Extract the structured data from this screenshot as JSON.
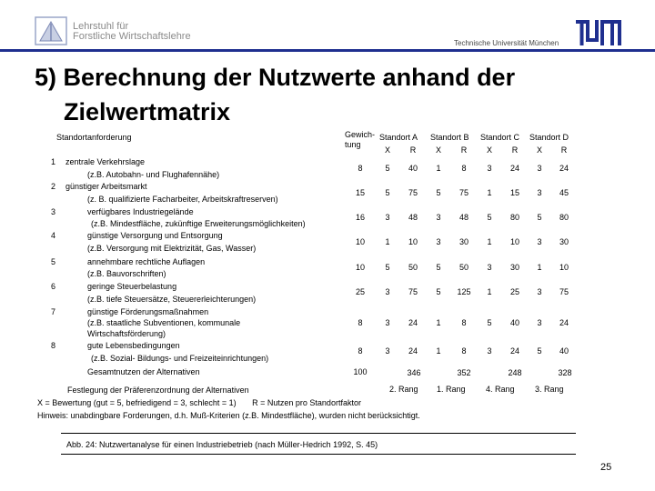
{
  "header": {
    "chair_line1": "Lehrstuhl für",
    "chair_line2": "Forstliche Wirtschaftslehre",
    "university": "Technische Universität München",
    "tum_logo": "TUM"
  },
  "title_line1": "5) Berechnung der Nutzwerte anhand der",
  "title_line2": "Zielwertmatrix",
  "table": {
    "col_criteria": "Standortanforderung",
    "col_weight_1": "Gewich-",
    "col_weight_2": "tung",
    "sites": [
      "Standort A",
      "Standort B",
      "Standort C",
      "Standort D"
    ],
    "sub_x": "X",
    "sub_r": "R",
    "rows": [
      {
        "no": "1",
        "line1": "zentrale Verkehrslage",
        "line2": "(z.B. Autobahn- und Flughafennähe)",
        "w": "8",
        "v": [
          "5",
          "40",
          "1",
          "8",
          "3",
          "24",
          "3",
          "24"
        ]
      },
      {
        "no": "2",
        "line1": "günstiger Arbeitsmarkt",
        "line2": "(z. B. qualifizierte Facharbeiter, Arbeitskraftreserven)",
        "w": "15",
        "v": [
          "5",
          "75",
          "5",
          "75",
          "1",
          "15",
          "3",
          "45"
        ]
      },
      {
        "no": "3",
        "line1": "verfügbares Industriegelände",
        "line2": "(z.B. Mindestfläche, zukünftige Erweiterungsmöglichkeiten)",
        "w": "16",
        "v": [
          "3",
          "48",
          "3",
          "48",
          "5",
          "80",
          "5",
          "80"
        ]
      },
      {
        "no": "4",
        "line1": "günstige Versorgung und Entsorgung",
        "line2": "(z.B. Versorgung mit Elektrizität, Gas, Wasser)",
        "w": "10",
        "v": [
          "1",
          "10",
          "3",
          "30",
          "1",
          "10",
          "3",
          "30"
        ]
      },
      {
        "no": "5",
        "line1": "annehmbare rechtliche Auflagen",
        "line2": "(z.B. Bauvorschriften)",
        "w": "10",
        "v": [
          "5",
          "50",
          "5",
          "50",
          "3",
          "30",
          "1",
          "10"
        ]
      },
      {
        "no": "6",
        "line1": "geringe Steuerbelastung",
        "line2": "(z.B. tiefe Steuersätze, Steuererleichterungen)",
        "w": "25",
        "v": [
          "3",
          "75",
          "5",
          "125",
          "1",
          "25",
          "3",
          "75"
        ]
      },
      {
        "no": "7",
        "line1": "günstige Förderungsmaßnahmen",
        "line2": "(z.B. staatliche Subventionen, kommunale",
        "line3": "Wirtschaftsförderung)",
        "w": "8",
        "v": [
          "3",
          "24",
          "1",
          "8",
          "5",
          "40",
          "3",
          "24"
        ]
      },
      {
        "no": "8",
        "line1": "gute Lebensbedingungen",
        "line2": "(z.B. Sozial- Bildungs- und Freizeiteinrichtungen)",
        "w": "8",
        "v": [
          "3",
          "24",
          "1",
          "8",
          "3",
          "24",
          "5",
          "40"
        ]
      }
    ],
    "total_label": "Gesamtnutzen der Alternativen",
    "total_weight": "100",
    "totals": [
      "346",
      "352",
      "248",
      "328"
    ],
    "rank_label": "Festlegung der Präferenzordnung der Alternativen",
    "ranks": [
      "2. Rang",
      "1. Rang",
      "4. Rang",
      "3. Rang"
    ]
  },
  "legend": "X = Bewertung (gut = 5, befriedigend = 3, schlecht = 1)       R = Nutzen pro Standortfaktor",
  "hint": "Hinweis: unabdingbare Forderungen, d.h. Muß-Kriterien (z.B. Mindestfläche), wurden nicht berücksichtigt.",
  "caption": "Abb. 24: Nutzwertanalyse für einen Industriebetrieb (nach Müller-Hedrich 1992, S. 45)",
  "page_number": "25",
  "colors": {
    "accent": "#1f2f8f",
    "logo": "#8a8a8a"
  }
}
